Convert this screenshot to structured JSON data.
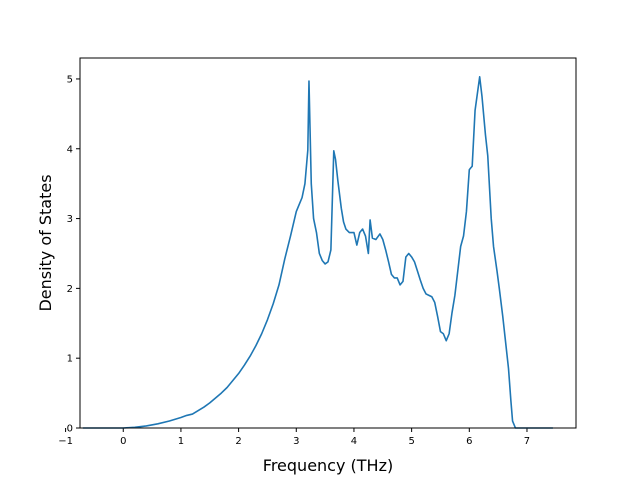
{
  "chart_data": {
    "type": "line",
    "title": "",
    "xlabel": "Frequency (THz)",
    "ylabel": "Density of States",
    "xlim": [
      -0.75,
      7.85
    ],
    "ylim": [
      0,
      5.3
    ],
    "xticks": [
      -1,
      0,
      1,
      2,
      3,
      4,
      5,
      6,
      7
    ],
    "yticks": [
      0,
      1,
      2,
      3,
      4,
      5
    ],
    "grid": false,
    "series": [
      {
        "color": "#1f77b4",
        "x": [
          -0.7,
          -0.3,
          0.0,
          0.2,
          0.4,
          0.6,
          0.8,
          1.0,
          1.1,
          1.2,
          1.3,
          1.4,
          1.5,
          1.6,
          1.7,
          1.8,
          1.9,
          2.0,
          2.1,
          2.2,
          2.3,
          2.4,
          2.5,
          2.6,
          2.7,
          2.8,
          2.9,
          3.0,
          3.05,
          3.1,
          3.15,
          3.2,
          3.22,
          3.26,
          3.3,
          3.35,
          3.4,
          3.45,
          3.5,
          3.55,
          3.6,
          3.65,
          3.68,
          3.72,
          3.78,
          3.82,
          3.86,
          3.92,
          4.0,
          4.05,
          4.1,
          4.15,
          4.2,
          4.25,
          4.28,
          4.32,
          4.38,
          4.45,
          4.5,
          4.55,
          4.6,
          4.65,
          4.7,
          4.75,
          4.8,
          4.85,
          4.9,
          4.95,
          5.0,
          5.05,
          5.1,
          5.15,
          5.2,
          5.25,
          5.3,
          5.35,
          5.4,
          5.45,
          5.5,
          5.55,
          5.6,
          5.65,
          5.7,
          5.75,
          5.8,
          5.85,
          5.9,
          5.95,
          6.0,
          6.02,
          6.05,
          6.1,
          6.15,
          6.18,
          6.22,
          6.28,
          6.32,
          6.38,
          6.42,
          6.48,
          6.52,
          6.58,
          6.62,
          6.68,
          6.72,
          6.75,
          6.8,
          6.85,
          7.0,
          7.45
        ],
        "y": [
          0,
          0,
          0.0,
          0.01,
          0.03,
          0.06,
          0.1,
          0.15,
          0.18,
          0.2,
          0.25,
          0.3,
          0.36,
          0.43,
          0.5,
          0.58,
          0.68,
          0.78,
          0.9,
          1.03,
          1.18,
          1.35,
          1.55,
          1.78,
          2.05,
          2.42,
          2.75,
          3.1,
          3.2,
          3.3,
          3.5,
          3.98,
          4.97,
          3.5,
          3.0,
          2.8,
          2.5,
          2.4,
          2.35,
          2.38,
          2.55,
          3.97,
          3.85,
          3.55,
          3.15,
          2.95,
          2.85,
          2.8,
          2.8,
          2.62,
          2.8,
          2.85,
          2.75,
          2.5,
          2.98,
          2.72,
          2.7,
          2.78,
          2.7,
          2.55,
          2.38,
          2.2,
          2.15,
          2.15,
          2.05,
          2.1,
          2.45,
          2.5,
          2.45,
          2.38,
          2.25,
          2.12,
          2.0,
          1.92,
          1.9,
          1.88,
          1.8,
          1.6,
          1.38,
          1.35,
          1.25,
          1.35,
          1.65,
          1.9,
          2.25,
          2.6,
          2.75,
          3.1,
          3.7,
          3.72,
          3.75,
          4.55,
          4.85,
          5.03,
          4.75,
          4.2,
          3.9,
          3.0,
          2.6,
          2.25,
          2.0,
          1.6,
          1.3,
          0.85,
          0.4,
          0.1,
          0.0,
          0.0,
          0.0,
          0.0
        ]
      }
    ]
  }
}
